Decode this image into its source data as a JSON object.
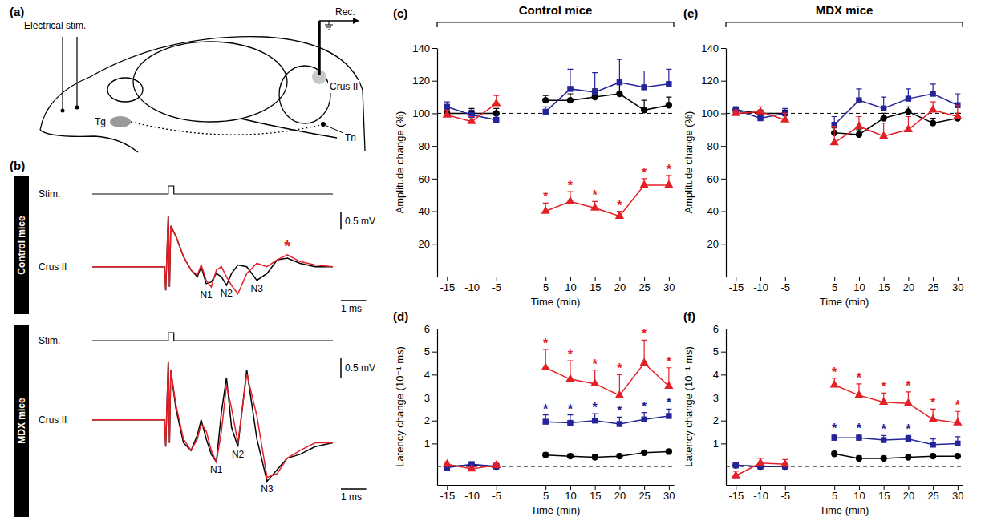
{
  "diagram": {
    "label": "(a)",
    "stimulus": "Electrical stim.",
    "recording": "Rec.",
    "ganglion": "Tg",
    "cortex": "Crus II",
    "nucleus": "Tn"
  },
  "chart_data": [
    {
      "type": "line",
      "panel_label": "(b)",
      "title": "Control mice",
      "stimulus_label": "Stim.",
      "stimulus_time": 0,
      "trace_label": "Crus II",
      "tick_labels": false,
      "x": [
        -3,
        -0.15,
        -0.1,
        0,
        0.05,
        0.1,
        0.3,
        0.6,
        0.9,
        1.15,
        1.3,
        1.5,
        1.7,
        1.9,
        2.1,
        2.3,
        2.5,
        2.75,
        3.1,
        3.5,
        3.9,
        4.3,
        4.7,
        5.2,
        5.8,
        6.5
      ],
      "xlim": [
        -3,
        6.5
      ],
      "ylim": [
        -1,
        1.6
      ],
      "series": [
        {
          "color": "#000000",
          "values": [
            0,
            0,
            -0.7,
            1.5,
            -0.6,
            1.2,
            0.9,
            0.3,
            -0.1,
            -0.3,
            0,
            -0.5,
            -0.45,
            -0.2,
            -0.3,
            -0.55,
            -0.2,
            0.05,
            0,
            -0.4,
            -0.2,
            0.2,
            0.25,
            0.1,
            0,
            0
          ]
        },
        {
          "color": "#e41f26",
          "values": [
            0,
            0,
            -0.7,
            1.5,
            -0.6,
            1.2,
            0.9,
            0.3,
            -0.1,
            -0.25,
            0.05,
            -0.4,
            -0.6,
            -0.1,
            0,
            -0.3,
            -0.55,
            -0.8,
            -0.2,
            0.1,
            0,
            0.2,
            0.35,
            0.15,
            0.05,
            0
          ]
        }
      ],
      "peak_labels": [
        {
          "text": "N1",
          "x": 1.5
        },
        {
          "text": "N2",
          "x": 2.3
        },
        {
          "text": "N3",
          "x": 3.5
        }
      ],
      "annotations": [
        {
          "text": "*",
          "x": 4.7,
          "color": "#e41f26"
        }
      ],
      "scale_bars": {
        "y": {
          "value": 0.5,
          "label": "0.5 mV"
        },
        "x": {
          "value": 1,
          "label": "1 ms"
        }
      }
    },
    {
      "type": "line",
      "title": "MDX mice",
      "stimulus_label": "Stim.",
      "stimulus_time": 0,
      "trace_label": "Crus II",
      "tick_labels": false,
      "x": [
        -3,
        -0.15,
        -0.1,
        0,
        0.05,
        0.1,
        0.3,
        0.6,
        0.9,
        1.15,
        1.3,
        1.5,
        1.7,
        1.9,
        2.1,
        2.3,
        2.5,
        2.75,
        3.1,
        3.5,
        3.9,
        4.3,
        4.7,
        5.2,
        5.8,
        6.5
      ],
      "xlim": [
        -3,
        6.5
      ],
      "ylim": [
        -1.8,
        1.6
      ],
      "series": [
        {
          "color": "#000000",
          "values": [
            0,
            0,
            -0.7,
            1.5,
            -0.6,
            1.3,
            0.3,
            -0.6,
            -0.8,
            -0.4,
            0,
            -0.5,
            -0.9,
            -1.1,
            0.2,
            1.1,
            -0.2,
            -0.7,
            1.3,
            -0.5,
            -1.6,
            -1.3,
            -1,
            -0.9,
            -0.7,
            -0.6
          ]
        },
        {
          "color": "#e41f26",
          "values": [
            0,
            0,
            -0.7,
            1.5,
            -0.6,
            1.3,
            0.4,
            -0.5,
            -0.8,
            -0.5,
            -0.1,
            -0.3,
            -0.8,
            -1.1,
            -0.3,
            0.9,
            0.3,
            -0.6,
            1.2,
            0.1,
            -1.5,
            -1.4,
            -1,
            -0.8,
            -0.6,
            -0.6
          ]
        }
      ],
      "peak_labels": [
        {
          "text": "N1",
          "x": 1.9
        },
        {
          "text": "N2",
          "x": 2.75
        },
        {
          "text": "N3",
          "x": 3.9
        }
      ],
      "scale_bars": {
        "y": {
          "value": 0.5,
          "label": "0.5 mV"
        },
        "x": {
          "value": 1,
          "label": "1 ms"
        }
      }
    },
    {
      "type": "line",
      "panel_label": "(c)",
      "title": "Control mice",
      "x": [
        -15,
        -10,
        -5,
        0,
        5,
        10,
        15,
        20,
        25,
        30
      ],
      "xlim": [
        -17,
        31
      ],
      "xticks": [
        -15,
        -10,
        -5,
        5,
        10,
        15,
        20,
        25,
        30
      ],
      "ylim": [
        0,
        140
      ],
      "yticks": [
        20,
        40,
        60,
        80,
        100,
        120,
        140
      ],
      "x_label": "Time (min)",
      "y_label": "Amplitude change (%)",
      "baseline": 100,
      "series": [
        {
          "color": "#000000",
          "marker": "circle",
          "values": [
            100,
            100,
            100,
            null,
            108,
            108,
            110,
            112,
            102,
            105
          ],
          "errors": [
            3,
            3,
            3,
            null,
            3,
            4,
            5,
            7,
            6,
            5
          ]
        },
        {
          "color": "#23239a",
          "marker": "square",
          "values": [
            104,
            99,
            96,
            null,
            101,
            115,
            113,
            119,
            116,
            118
          ],
          "errors": [
            3,
            3,
            3,
            null,
            3,
            12,
            12,
            14,
            10,
            9
          ]
        },
        {
          "color": "#e41f26",
          "marker": "triangle",
          "values": [
            99,
            95,
            106,
            null,
            40,
            46,
            42,
            37,
            56,
            56
          ],
          "errors": [
            3,
            3,
            5,
            null,
            5,
            6,
            4,
            3,
            4,
            6
          ],
          "significance": [
            null,
            null,
            null,
            null,
            "*",
            "*",
            "*",
            "*",
            "*",
            "*"
          ]
        }
      ]
    },
    {
      "type": "line",
      "panel_label": "(d)",
      "x": [
        -15,
        -10,
        -5,
        0,
        5,
        10,
        15,
        20,
        25,
        30
      ],
      "xlim": [
        -17,
        31
      ],
      "xticks": [
        -15,
        -10,
        -5,
        5,
        10,
        15,
        20,
        25,
        30
      ],
      "ylim": [
        -0.8,
        6
      ],
      "yticks": [
        1,
        2,
        3,
        4,
        5,
        6
      ],
      "x_label": "Time (min)",
      "y_label": "Latency change (10⁻¹ ms)",
      "baseline": 0,
      "series": [
        {
          "color": "#000000",
          "marker": "circle",
          "values": [
            0,
            0.05,
            0,
            null,
            0.5,
            0.45,
            0.4,
            0.45,
            0.6,
            0.65
          ],
          "errors": [
            0.1,
            0.1,
            0.1,
            null,
            0.1,
            0.1,
            0.1,
            0.1,
            0.1,
            0.1
          ]
        },
        {
          "color": "#23239a",
          "marker": "square",
          "values": [
            -0.05,
            0.1,
            0,
            null,
            1.95,
            1.9,
            2,
            1.85,
            2.05,
            2.2
          ],
          "errors": [
            0.1,
            0.1,
            0.1,
            null,
            0.3,
            0.35,
            0.3,
            0.3,
            0.3,
            0.3
          ],
          "significance": [
            null,
            null,
            null,
            null,
            "*",
            "*",
            "*",
            "*",
            "*",
            "*"
          ]
        },
        {
          "color": "#e41f26",
          "marker": "triangle",
          "values": [
            0.1,
            -0.1,
            0.05,
            null,
            4.3,
            3.8,
            3.6,
            3.1,
            4.5,
            3.5
          ],
          "errors": [
            0.1,
            0.1,
            0.1,
            null,
            0.8,
            0.8,
            0.6,
            0.9,
            1,
            0.8
          ],
          "significance": [
            null,
            null,
            null,
            null,
            "*",
            "*",
            "*",
            "*",
            "*",
            "*"
          ]
        }
      ]
    },
    {
      "type": "line",
      "panel_label": "(e)",
      "title": "MDX mice",
      "x": [
        -15,
        -10,
        -5,
        0,
        5,
        10,
        15,
        20,
        25,
        30
      ],
      "xlim": [
        -17,
        31
      ],
      "xticks": [
        -15,
        -10,
        -5,
        5,
        10,
        15,
        20,
        25,
        30
      ],
      "ylim": [
        0,
        140
      ],
      "yticks": [
        20,
        40,
        60,
        80,
        100,
        120,
        140
      ],
      "x_label": "Time (min)",
      "y_label": "Amplitude change (%)",
      "baseline": 100,
      "series": [
        {
          "color": "#000000",
          "marker": "circle",
          "values": [
            102,
            100,
            100,
            null,
            88,
            87,
            97,
            101,
            94,
            97
          ],
          "errors": [
            2,
            2,
            2,
            null,
            3,
            3,
            3,
            3,
            3,
            3
          ]
        },
        {
          "color": "#23239a",
          "marker": "square",
          "values": [
            102,
            97,
            100,
            null,
            93,
            108,
            103,
            109,
            112,
            105
          ],
          "errors": [
            2,
            2,
            3,
            null,
            5,
            7,
            7,
            6,
            6,
            7
          ]
        },
        {
          "color": "#e41f26",
          "marker": "triangle",
          "values": [
            100,
            101,
            96,
            null,
            82,
            92,
            86,
            90,
            102,
            98
          ],
          "errors": [
            2,
            3,
            4,
            null,
            10,
            6,
            8,
            8,
            5,
            7
          ]
        }
      ]
    },
    {
      "type": "line",
      "panel_label": "(f)",
      "x": [
        -15,
        -10,
        -5,
        0,
        5,
        10,
        15,
        20,
        25,
        30
      ],
      "xlim": [
        -17,
        31
      ],
      "xticks": [
        -15,
        -10,
        -5,
        5,
        10,
        15,
        20,
        25,
        30
      ],
      "ylim": [
        -0.8,
        6
      ],
      "yticks": [
        1,
        2,
        3,
        4,
        5,
        6
      ],
      "x_label": "Time (min)",
      "y_label": "Latency change (10⁻¹ ms)",
      "baseline": 0,
      "series": [
        {
          "color": "#000000",
          "marker": "circle",
          "values": [
            0.05,
            0,
            0,
            null,
            0.55,
            0.35,
            0.35,
            0.4,
            0.45,
            0.45
          ],
          "errors": [
            0.1,
            0.1,
            0.1,
            null,
            0.1,
            0.1,
            0.1,
            0.1,
            0.1,
            0.1
          ]
        },
        {
          "color": "#23239a",
          "marker": "square",
          "values": [
            0.05,
            0,
            0,
            null,
            1.25,
            1.25,
            1.15,
            1.2,
            0.95,
            1
          ],
          "errors": [
            0.1,
            0.1,
            0.1,
            null,
            0.15,
            0.15,
            0.2,
            0.15,
            0.25,
            0.3
          ],
          "significance": [
            null,
            null,
            null,
            null,
            "*",
            "*",
            "*",
            "*",
            null,
            null
          ]
        },
        {
          "color": "#e41f26",
          "marker": "triangle",
          "values": [
            -0.4,
            0.15,
            0.1,
            null,
            3.55,
            3.1,
            2.8,
            2.75,
            2.05,
            1.9
          ],
          "errors": [
            0.2,
            0.2,
            0.2,
            null,
            0.3,
            0.5,
            0.4,
            0.5,
            0.45,
            0.5
          ],
          "significance": [
            null,
            null,
            null,
            null,
            "*",
            "*",
            "*",
            "*",
            "*",
            "*"
          ]
        }
      ]
    }
  ]
}
